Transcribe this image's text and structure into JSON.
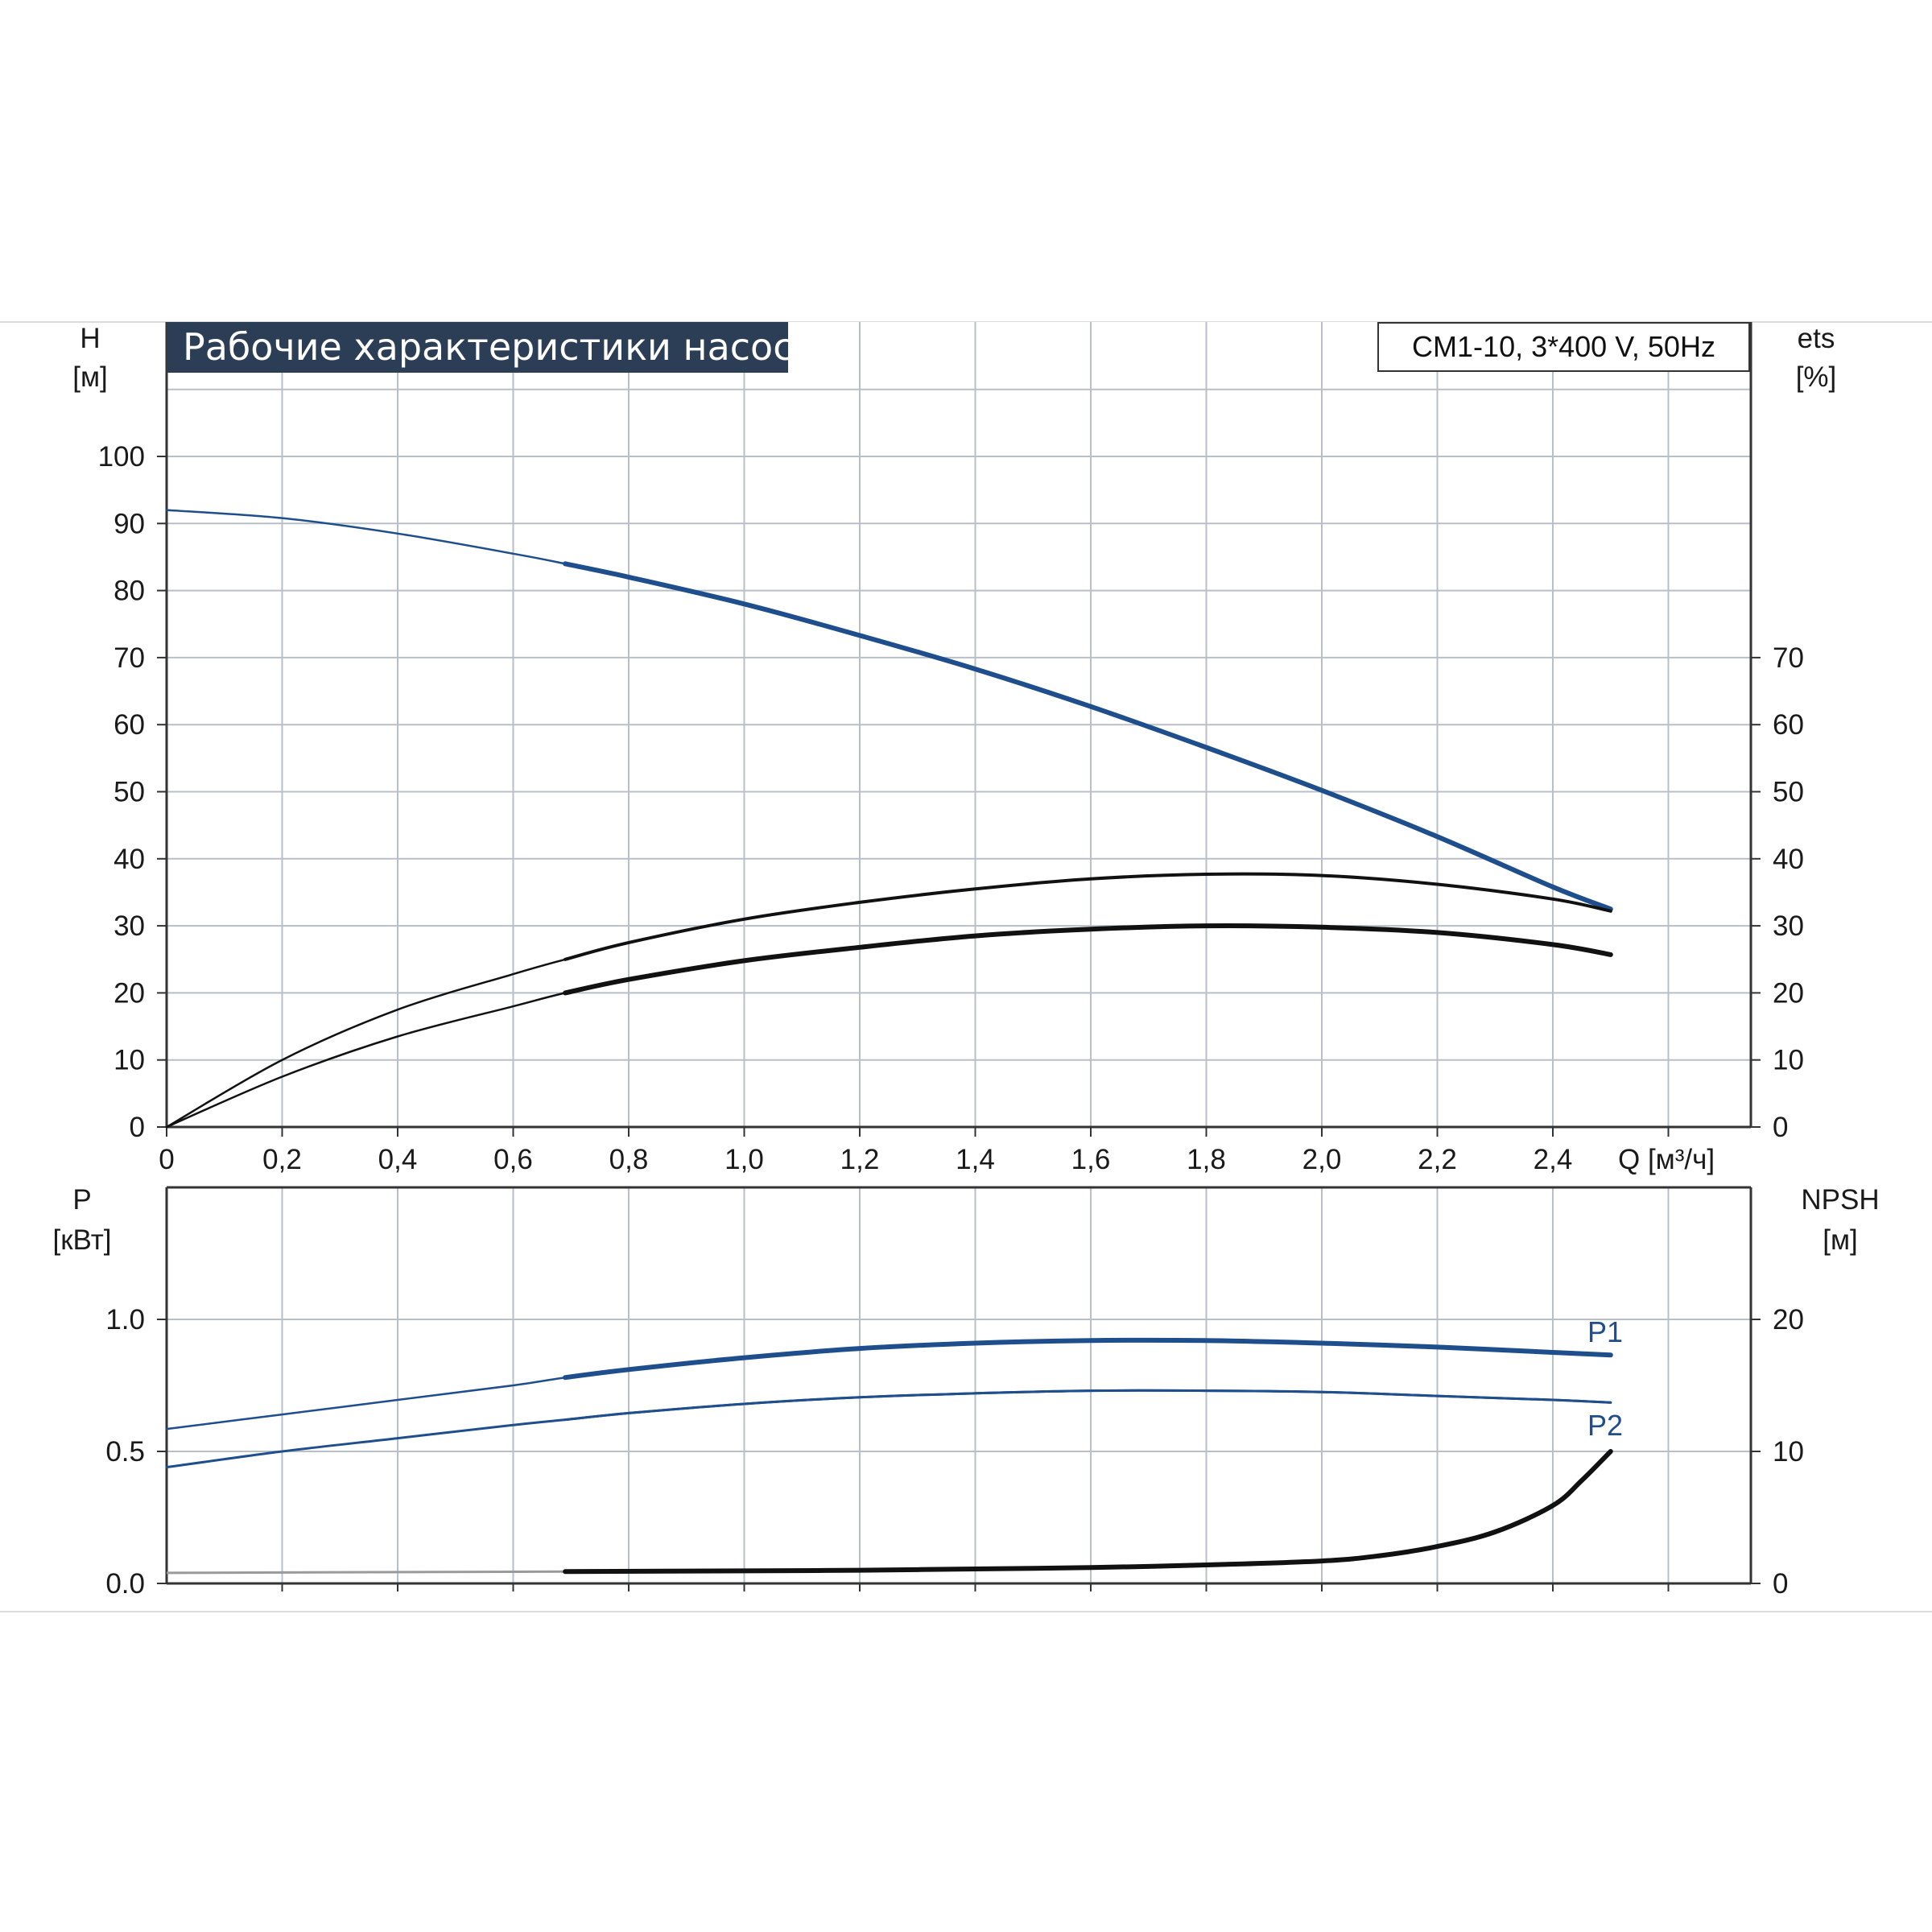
{
  "title": "Рабочие характеристики насоса",
  "model": "CM1-10, 3*400 V, 50Hz",
  "chart_data": [
    {
      "type": "line",
      "panel": "upper",
      "xlabel": "Q [м³/ч]",
      "x_ticks": [
        "0",
        "0,2",
        "0,4",
        "0,6",
        "0,8",
        "1,0",
        "1,2",
        "1,4",
        "1,6",
        "1,8",
        "2,0",
        "2,2",
        "2,4"
      ],
      "xlim": [
        0,
        2.75
      ],
      "ylabel_left": [
        "H",
        "[м]"
      ],
      "ylim_left": [
        0,
        120
      ],
      "y_ticks_left": [
        "0",
        "10",
        "20",
        "30",
        "40",
        "50",
        "60",
        "70",
        "80",
        "90",
        "100"
      ],
      "ylabel_right": [
        "ets",
        "[%]"
      ],
      "ylim_right": [
        0,
        120
      ],
      "y_ticks_right": [
        "0",
        "10",
        "20",
        "30",
        "40",
        "50",
        "60",
        "70"
      ],
      "grid": true,
      "series": [
        {
          "id": "H",
          "color": "#1f4e8c",
          "axis": "left",
          "x": [
            0,
            0.2,
            0.4,
            0.6,
            0.69,
            0.8,
            1.0,
            1.2,
            1.4,
            1.6,
            1.8,
            2.0,
            2.2,
            2.4,
            2.5
          ],
          "y": [
            92,
            90.8,
            88.5,
            85.5,
            84,
            82,
            78,
            73.3,
            68.3,
            62.7,
            56.6,
            50.2,
            43.3,
            35.8,
            32.5
          ]
        },
        {
          "id": "eta-upper",
          "color": "#111111",
          "axis": "right",
          "x": [
            0,
            0.2,
            0.4,
            0.6,
            0.69,
            0.8,
            1.0,
            1.2,
            1.4,
            1.6,
            1.8,
            2.0,
            2.2,
            2.4,
            2.5
          ],
          "y": [
            0,
            10,
            17.5,
            22.8,
            25,
            27.5,
            31,
            33.5,
            35.5,
            37,
            37.7,
            37.5,
            36.2,
            34,
            32.2
          ]
        },
        {
          "id": "eta-lower",
          "color": "#111111",
          "axis": "right",
          "x": [
            0,
            0.2,
            0.4,
            0.6,
            0.69,
            0.8,
            1.0,
            1.2,
            1.4,
            1.6,
            1.8,
            2.0,
            2.2,
            2.4,
            2.5
          ],
          "y": [
            0,
            7.5,
            13.5,
            18,
            20,
            22,
            24.8,
            26.8,
            28.5,
            29.5,
            30,
            29.8,
            29,
            27.2,
            25.7
          ]
        }
      ]
    },
    {
      "type": "line",
      "panel": "lower",
      "ylabel_left": [
        "P",
        "[кВт]"
      ],
      "ylim_left": [
        0,
        1.5
      ],
      "y_ticks_left": [
        "0.0",
        "0.5",
        "1.0"
      ],
      "ylabel_right": [
        "NPSH",
        "[м]"
      ],
      "ylim_right": [
        0,
        30
      ],
      "y_ticks_right": [
        "0",
        "10",
        "20"
      ],
      "xlim": [
        0,
        2.75
      ],
      "grid": true,
      "series": [
        {
          "id": "P1",
          "name": "P1",
          "color": "#1f4e8c",
          "axis": "left",
          "x": [
            0,
            0.2,
            0.4,
            0.6,
            0.69,
            0.8,
            1.0,
            1.2,
            1.4,
            1.6,
            1.8,
            2.0,
            2.2,
            2.4,
            2.5
          ],
          "y": [
            0.585,
            0.64,
            0.695,
            0.75,
            0.78,
            0.81,
            0.855,
            0.89,
            0.91,
            0.92,
            0.92,
            0.91,
            0.895,
            0.875,
            0.865
          ]
        },
        {
          "id": "P2",
          "name": "P2",
          "color": "#1f4e8c",
          "axis": "left",
          "x": [
            0,
            0.2,
            0.4,
            0.6,
            0.69,
            0.8,
            1.0,
            1.2,
            1.4,
            1.6,
            1.8,
            2.0,
            2.2,
            2.4,
            2.5
          ],
          "y": [
            0.44,
            0.5,
            0.55,
            0.6,
            0.62,
            0.645,
            0.68,
            0.705,
            0.72,
            0.73,
            0.73,
            0.725,
            0.71,
            0.695,
            0.685
          ]
        },
        {
          "id": "NPSH",
          "color": "#111111",
          "axis": "right",
          "x": [
            0,
            0.69,
            1.0,
            1.2,
            1.4,
            1.6,
            1.8,
            2.0,
            2.1,
            2.2,
            2.3,
            2.4,
            2.45,
            2.5
          ],
          "y": [
            0.8,
            0.9,
            0.95,
            1.0,
            1.1,
            1.2,
            1.4,
            1.7,
            2.1,
            2.8,
            3.9,
            5.9,
            7.8,
            10
          ]
        }
      ]
    }
  ]
}
